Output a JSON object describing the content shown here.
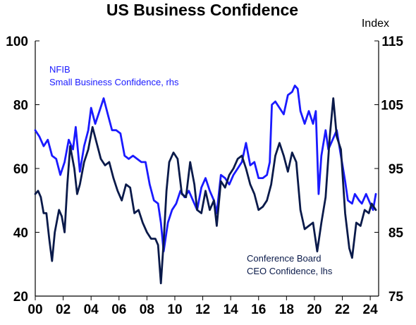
{
  "chart_data": {
    "type": "line",
    "title": "US Business Confidence",
    "right_axis_unit": "Index",
    "x_range": [
      2000,
      2024.6
    ],
    "x_ticks": [
      "00",
      "02",
      "04",
      "06",
      "08",
      "10",
      "12",
      "14",
      "16",
      "18",
      "20",
      "22",
      "24"
    ],
    "y_left": {
      "range": [
        20,
        100
      ],
      "ticks": [
        "20",
        "40",
        "60",
        "80",
        "100"
      ]
    },
    "y_right": {
      "range": [
        75,
        115
      ],
      "ticks": [
        "75",
        "85",
        "95",
        "105",
        "115"
      ]
    },
    "grid": false,
    "series": [
      {
        "name": "NFIB Small Business Confidence, rhs",
        "label_lines": [
          "NFIB",
          "Small Business Confidence, rhs"
        ],
        "axis": "right",
        "color": "#1a1aff",
        "points": [
          [
            2000.0,
            101.0
          ],
          [
            2000.3,
            100.0
          ],
          [
            2000.6,
            98.5
          ],
          [
            2000.9,
            99.5
          ],
          [
            2001.2,
            97.0
          ],
          [
            2001.5,
            96.5
          ],
          [
            2001.8,
            94.0
          ],
          [
            2002.1,
            96.0
          ],
          [
            2002.4,
            99.5
          ],
          [
            2002.7,
            98.0
          ],
          [
            2002.9,
            101.5
          ],
          [
            2003.2,
            94.5
          ],
          [
            2003.5,
            98.5
          ],
          [
            2003.8,
            101.0
          ],
          [
            2004.0,
            104.5
          ],
          [
            2004.3,
            102.0
          ],
          [
            2004.6,
            104.0
          ],
          [
            2004.9,
            106.0
          ],
          [
            2005.2,
            103.5
          ],
          [
            2005.5,
            101.0
          ],
          [
            2005.8,
            101.0
          ],
          [
            2006.1,
            100.5
          ],
          [
            2006.4,
            97.0
          ],
          [
            2006.7,
            96.5
          ],
          [
            2007.0,
            97.0
          ],
          [
            2007.3,
            96.5
          ],
          [
            2007.6,
            96.0
          ],
          [
            2007.9,
            96.0
          ],
          [
            2008.2,
            92.5
          ],
          [
            2008.5,
            90.0
          ],
          [
            2008.8,
            89.5
          ],
          [
            2009.0,
            86.5
          ],
          [
            2009.2,
            82.0
          ],
          [
            2009.5,
            86.5
          ],
          [
            2009.8,
            88.5
          ],
          [
            2010.1,
            89.5
          ],
          [
            2010.4,
            91.5
          ],
          [
            2010.7,
            90.5
          ],
          [
            2011.0,
            91.5
          ],
          [
            2011.3,
            90.0
          ],
          [
            2011.6,
            88.5
          ],
          [
            2011.9,
            92.0
          ],
          [
            2012.2,
            93.5
          ],
          [
            2012.5,
            91.5
          ],
          [
            2012.8,
            90.0
          ],
          [
            2013.0,
            88.0
          ],
          [
            2013.3,
            94.0
          ],
          [
            2013.6,
            93.5
          ],
          [
            2013.9,
            92.5
          ],
          [
            2014.2,
            94.0
          ],
          [
            2014.5,
            95.0
          ],
          [
            2014.8,
            96.0
          ],
          [
            2015.1,
            99.0
          ],
          [
            2015.4,
            95.5
          ],
          [
            2015.7,
            96.0
          ],
          [
            2016.0,
            93.5
          ],
          [
            2016.3,
            93.5
          ],
          [
            2016.6,
            94.0
          ],
          [
            2016.8,
            96.0
          ],
          [
            2016.95,
            105.0
          ],
          [
            2017.2,
            105.5
          ],
          [
            2017.5,
            104.5
          ],
          [
            2017.8,
            103.5
          ],
          [
            2018.1,
            106.5
          ],
          [
            2018.4,
            107.0
          ],
          [
            2018.6,
            108.0
          ],
          [
            2018.8,
            107.5
          ],
          [
            2019.0,
            104.0
          ],
          [
            2019.3,
            102.0
          ],
          [
            2019.6,
            104.0
          ],
          [
            2019.9,
            102.0
          ],
          [
            2020.1,
            104.0
          ],
          [
            2020.3,
            91.0
          ],
          [
            2020.5,
            97.0
          ],
          [
            2020.8,
            101.0
          ],
          [
            2021.0,
            98.0
          ],
          [
            2021.3,
            99.5
          ],
          [
            2021.6,
            101.0
          ],
          [
            2021.9,
            97.0
          ],
          [
            2022.2,
            93.0
          ],
          [
            2022.4,
            90.0
          ],
          [
            2022.7,
            89.5
          ],
          [
            2022.9,
            91.0
          ],
          [
            2023.2,
            90.0
          ],
          [
            2023.4,
            89.5
          ],
          [
            2023.7,
            91.0
          ],
          [
            2024.0,
            89.5
          ],
          [
            2024.2,
            88.5
          ],
          [
            2024.4,
            91.0
          ]
        ]
      },
      {
        "name": "Conference Board CEO Confidence, lhs",
        "label_lines": [
          "Conference Board",
          "CEO Confidence, lhs"
        ],
        "axis": "left",
        "color": "#0a1a4a",
        "points": [
          [
            2000.0,
            52
          ],
          [
            2000.2,
            53
          ],
          [
            2000.4,
            51
          ],
          [
            2000.6,
            46
          ],
          [
            2000.8,
            46
          ],
          [
            2001.0,
            38
          ],
          [
            2001.2,
            31
          ],
          [
            2001.4,
            40
          ],
          [
            2001.7,
            47
          ],
          [
            2001.9,
            45
          ],
          [
            2002.1,
            40
          ],
          [
            2002.3,
            55
          ],
          [
            2002.5,
            67
          ],
          [
            2002.8,
            60
          ],
          [
            2003.0,
            52
          ],
          [
            2003.2,
            55
          ],
          [
            2003.5,
            62
          ],
          [
            2003.8,
            66
          ],
          [
            2004.1,
            73
          ],
          [
            2004.4,
            68
          ],
          [
            2004.7,
            63
          ],
          [
            2005.0,
            61
          ],
          [
            2005.3,
            62
          ],
          [
            2005.6,
            57
          ],
          [
            2005.9,
            53
          ],
          [
            2006.2,
            50
          ],
          [
            2006.5,
            55
          ],
          [
            2006.8,
            54
          ],
          [
            2007.1,
            46
          ],
          [
            2007.4,
            47
          ],
          [
            2007.7,
            43
          ],
          [
            2008.0,
            40
          ],
          [
            2008.3,
            38
          ],
          [
            2008.6,
            38
          ],
          [
            2008.8,
            36
          ],
          [
            2009.0,
            24
          ],
          [
            2009.2,
            37
          ],
          [
            2009.4,
            53
          ],
          [
            2009.6,
            62
          ],
          [
            2009.9,
            65
          ],
          [
            2010.2,
            63
          ],
          [
            2010.5,
            52
          ],
          [
            2010.8,
            51
          ],
          [
            2011.1,
            62
          ],
          [
            2011.4,
            55
          ],
          [
            2011.6,
            47
          ],
          [
            2011.9,
            46
          ],
          [
            2012.2,
            53
          ],
          [
            2012.5,
            47
          ],
          [
            2012.8,
            50
          ],
          [
            2013.0,
            42
          ],
          [
            2013.3,
            56
          ],
          [
            2013.6,
            54
          ],
          [
            2013.9,
            58
          ],
          [
            2014.2,
            60
          ],
          [
            2014.5,
            63
          ],
          [
            2014.8,
            64
          ],
          [
            2015.1,
            60
          ],
          [
            2015.4,
            55
          ],
          [
            2015.7,
            52
          ],
          [
            2016.0,
            47
          ],
          [
            2016.3,
            48
          ],
          [
            2016.6,
            50
          ],
          [
            2016.9,
            55
          ],
          [
            2017.2,
            64
          ],
          [
            2017.5,
            68
          ],
          [
            2017.8,
            64
          ],
          [
            2018.1,
            59
          ],
          [
            2018.4,
            65
          ],
          [
            2018.7,
            62
          ],
          [
            2019.0,
            47
          ],
          [
            2019.3,
            41
          ],
          [
            2019.6,
            42
          ],
          [
            2019.9,
            43
          ],
          [
            2020.2,
            34
          ],
          [
            2020.5,
            43
          ],
          [
            2020.8,
            51
          ],
          [
            2021.1,
            70
          ],
          [
            2021.35,
            82
          ],
          [
            2021.6,
            70
          ],
          [
            2021.9,
            66
          ],
          [
            2022.2,
            46
          ],
          [
            2022.5,
            35
          ],
          [
            2022.7,
            32
          ],
          [
            2023.0,
            43
          ],
          [
            2023.3,
            42
          ],
          [
            2023.6,
            47
          ],
          [
            2023.9,
            46
          ],
          [
            2024.1,
            49
          ],
          [
            2024.4,
            47
          ]
        ]
      }
    ]
  }
}
